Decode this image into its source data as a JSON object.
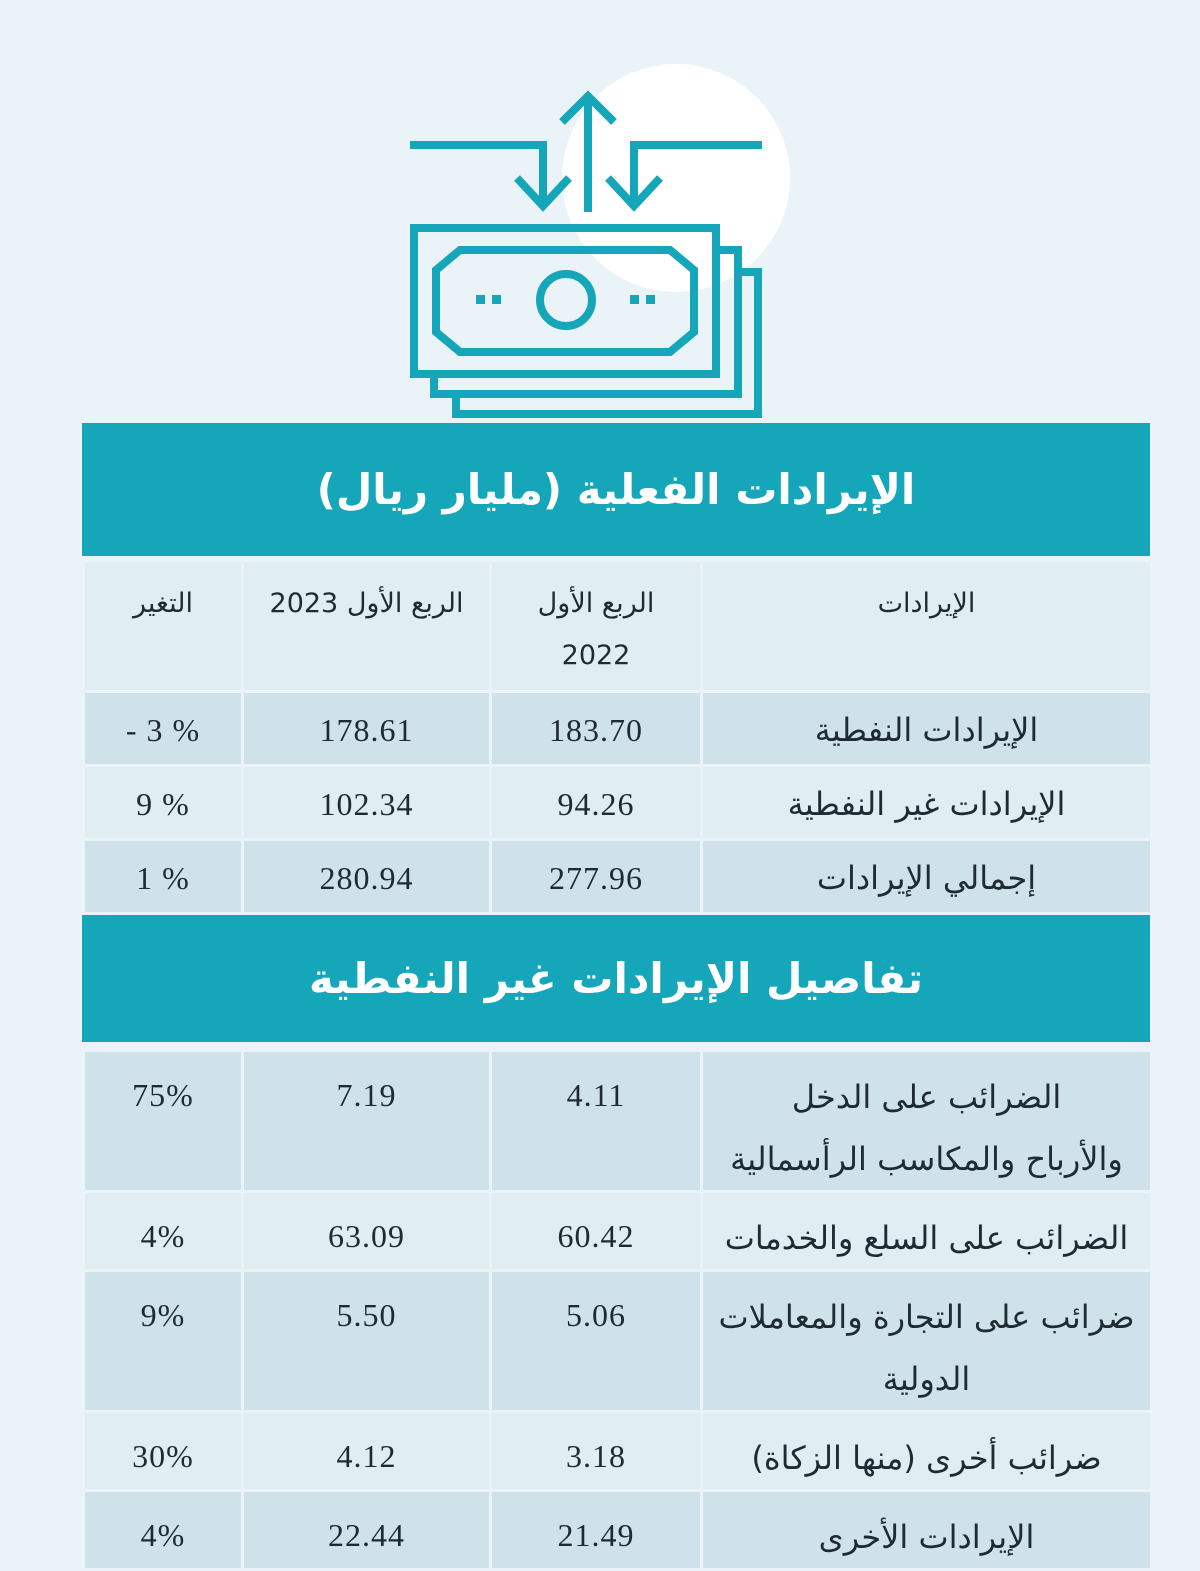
{
  "colors": {
    "accent": "#15a7b9",
    "background": "#eaf4f8",
    "row_light": "#e0edf2",
    "row_dark": "#cfe2ea"
  },
  "icon": "money-flow-icon",
  "section1": {
    "title": "الإيرادات الفعلية (مليار ريال)",
    "headers": {
      "label": "الإيرادات",
      "q1_2022_line1": "الربع الأول",
      "q1_2022_line2": "2022",
      "q1_2023": "الربع الأول 2023",
      "change": "التغير"
    },
    "rows": [
      {
        "label": "الإيرادات النفطية",
        "q1_2022": "183.70",
        "q1_2023": "178.61",
        "change": "- 3 %"
      },
      {
        "label": "الإيرادات غير النفطية",
        "q1_2022": "94.26",
        "q1_2023": "102.34",
        "change": "9 %"
      },
      {
        "label": "إجمالي الإيرادات",
        "q1_2022": "277.96",
        "q1_2023": "280.94",
        "change": "1 %"
      }
    ]
  },
  "section2": {
    "title": "تفاصيل الإيرادات غير النفطية",
    "rows": [
      {
        "label_line1": "الضرائب على الدخل",
        "label_line2": "والأرباح والمكاسب الرأسمالية",
        "q1_2022": "4.11",
        "q1_2023": "7.19",
        "change": "75%"
      },
      {
        "label_line1": "الضرائب على السلع والخدمات",
        "label_line2": "",
        "q1_2022": "60.42",
        "q1_2023": "63.09",
        "change": "4%"
      },
      {
        "label_line1": "ضرائب على التجارة والمعاملات",
        "label_line2": "الدولية",
        "q1_2022": "5.06",
        "q1_2023": "5.50",
        "change": "9%"
      },
      {
        "label_line1": "ضرائب أخرى (منها الزكاة)",
        "label_line2": "",
        "q1_2022": "3.18",
        "q1_2023": "4.12",
        "change": "30%"
      },
      {
        "label_line1": "الإيرادات الأخرى",
        "label_line2": "",
        "q1_2022": "21.49",
        "q1_2023": "22.44",
        "change": "4%"
      }
    ]
  }
}
